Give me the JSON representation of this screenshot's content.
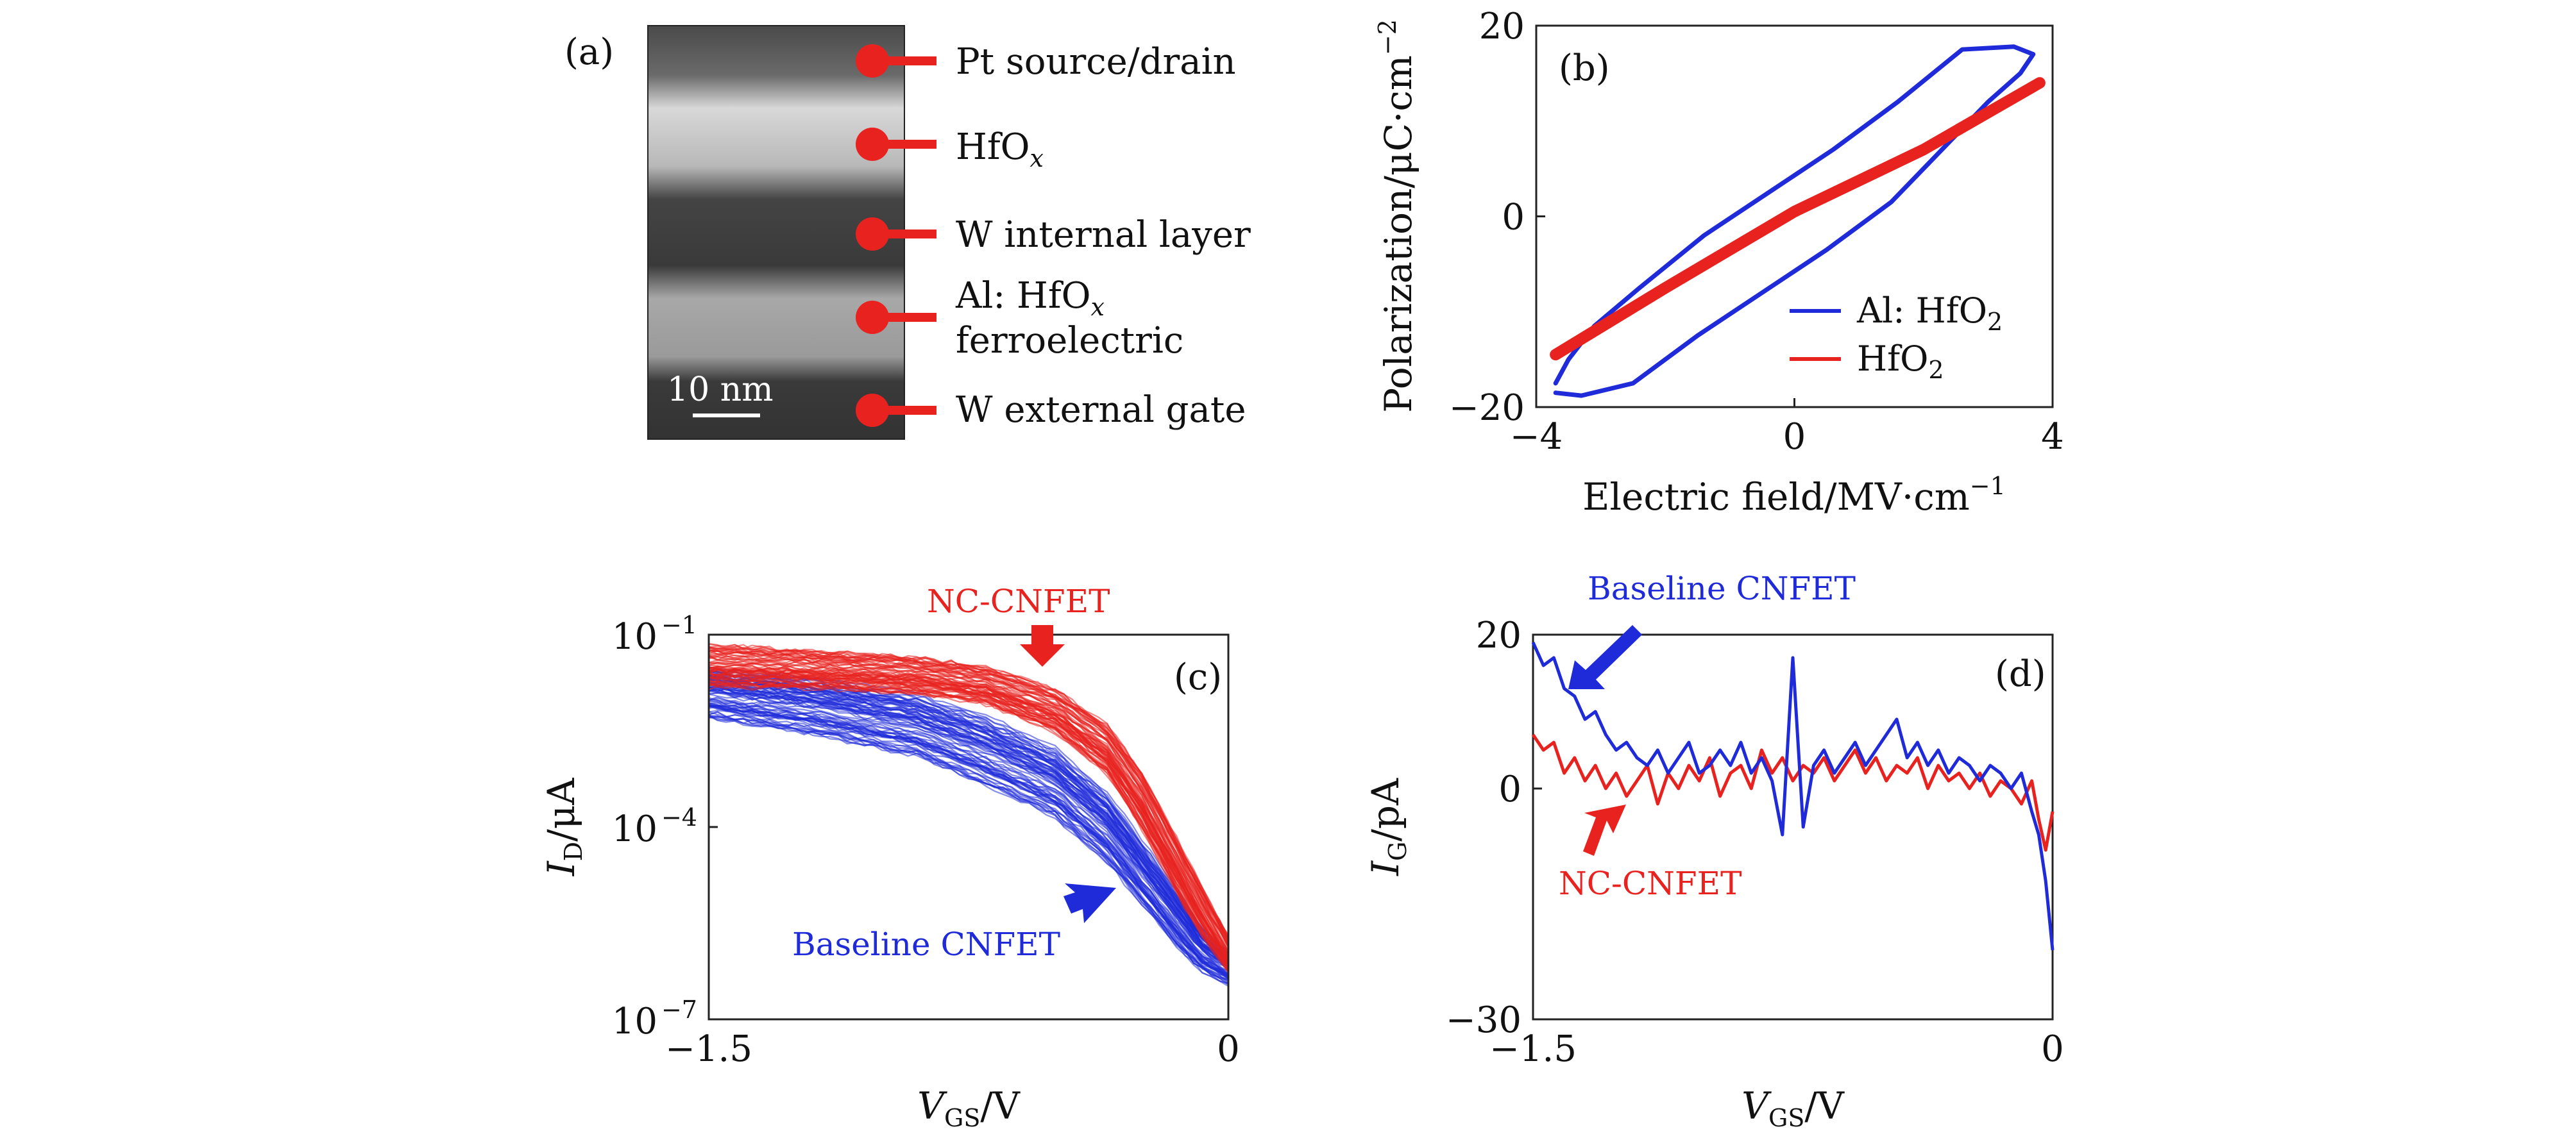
{
  "panels": {
    "a": {
      "label": "(a)",
      "scalebar": "10 nm",
      "layers": [
        {
          "lines": [
            "Pt source/drain"
          ]
        },
        {
          "lines": [
            "HfO",
            "x"
          ],
          "sub": true
        },
        {
          "lines": [
            "W internal layer"
          ]
        },
        {
          "lines": [
            "Al: HfO",
            "x"
          ],
          "sub": true,
          "line2": "ferroelectric"
        },
        {
          "lines": [
            "W external gate"
          ]
        }
      ]
    }
  },
  "chart_data": [
    {
      "id": "b",
      "type": "line",
      "panel_label": "(b)",
      "xlabel": "Electric field/MV·cm",
      "xlabel_sup": "−1",
      "ylabel": "Polarization/μC·cm",
      "ylabel_sup": "−2",
      "xlim": [
        -4,
        4
      ],
      "ylim": [
        -20,
        20
      ],
      "xticks": [
        -4,
        0,
        4
      ],
      "yticks": [
        -20,
        0,
        20
      ],
      "xtick_labels": [
        "−4",
        "0",
        "4"
      ],
      "ytick_labels": [
        "−20",
        "0",
        "20"
      ],
      "legend_position": "bottom-right",
      "series": [
        {
          "name": "Al: HfO",
          "name_sub": "2",
          "color": "#1f2bd8",
          "x": [
            -3.7,
            -3.3,
            -2.5,
            -1.5,
            -0.5,
            0.5,
            1.5,
            2.5,
            3.0,
            3.5,
            3.7,
            3.4,
            2.6,
            1.6,
            0.6,
            -0.4,
            -1.4,
            -2.4,
            -3.1,
            -3.5,
            -3.7
          ],
          "y": [
            -18.5,
            -18.8,
            -17.5,
            -12.5,
            -8.0,
            -3.5,
            1.5,
            8.5,
            12.0,
            15.0,
            17.0,
            17.8,
            17.5,
            12.0,
            7.0,
            2.5,
            -2.0,
            -7.5,
            -11.5,
            -15.0,
            -17.5
          ]
        },
        {
          "name": "HfO",
          "name_sub": "2",
          "color": "#e8231f",
          "x": [
            -3.7,
            -2.0,
            0.0,
            2.0,
            3.8
          ],
          "y": [
            -14.5,
            -7.5,
            0.5,
            7.0,
            14.0
          ]
        }
      ]
    },
    {
      "id": "c",
      "type": "line",
      "panel_label": "(c)",
      "xlabel": "V",
      "xlabel_sub": "GS",
      "xlabel_unit": "/V",
      "ylabel": "I",
      "ylabel_sub": "D",
      "ylabel_unit": "/μA",
      "xlim": [
        -1.5,
        0
      ],
      "ylog": true,
      "ylim_exp": [
        -7,
        -1
      ],
      "xticks": [
        -1.5,
        0
      ],
      "xtick_labels": [
        "−1.5",
        "0"
      ],
      "ytick_exps": [
        -1,
        -4,
        -7
      ],
      "ytick_labels": [
        "10",
        "10",
        "10"
      ],
      "ytick_sups": [
        "−1",
        "−4",
        "−7"
      ],
      "annotations": [
        {
          "text": "NC-CNFET",
          "color": "#e8231f"
        },
        {
          "text": "Baseline CNFET",
          "color": "#1f2bd8"
        }
      ],
      "families": [
        {
          "name": "NC-CNFET",
          "color": "#e8231f",
          "count": 70,
          "x": [
            -1.5,
            -1.2,
            -0.9,
            -0.7,
            -0.5,
            -0.35,
            -0.25,
            -0.15,
            -0.08,
            0
          ],
          "log_y_center": [
            -1.5,
            -1.55,
            -1.65,
            -1.8,
            -2.2,
            -2.8,
            -3.6,
            -4.6,
            -5.3,
            -6.0
          ],
          "log_y_spread": [
            0.35,
            0.3,
            0.3,
            0.3,
            0.35,
            0.4,
            0.45,
            0.45,
            0.4,
            0.3
          ]
        },
        {
          "name": "Baseline CNFET",
          "color": "#1f2bd8",
          "count": 80,
          "x": [
            -1.5,
            -1.2,
            -0.9,
            -0.7,
            -0.5,
            -0.35,
            -0.25,
            -0.15,
            -0.08,
            0
          ],
          "log_y_center": [
            -1.9,
            -2.1,
            -2.4,
            -2.8,
            -3.3,
            -4.0,
            -4.7,
            -5.4,
            -5.9,
            -6.2
          ],
          "log_y_spread": [
            0.4,
            0.45,
            0.5,
            0.55,
            0.55,
            0.55,
            0.5,
            0.45,
            0.35,
            0.25
          ]
        }
      ]
    },
    {
      "id": "d",
      "type": "line",
      "panel_label": "(d)",
      "xlabel": "V",
      "xlabel_sub": "GS",
      "xlabel_unit": "/V",
      "ylabel": "I",
      "ylabel_sub": "G",
      "ylabel_unit": "/pA",
      "xlim": [
        -1.5,
        0
      ],
      "ylim": [
        -30,
        20
      ],
      "xticks": [
        -1.5,
        0
      ],
      "xtick_labels": [
        "−1.5",
        "0"
      ],
      "yticks": [
        -30,
        0,
        20
      ],
      "ytick_labels": [
        "−30",
        "0",
        "20"
      ],
      "annotations": [
        {
          "text": "Baseline CNFET",
          "color": "#1f2bd8"
        },
        {
          "text": "NC-CNFET",
          "color": "#e8231f"
        }
      ],
      "series": [
        {
          "name": "Baseline CNFET",
          "color": "#1f2bd8",
          "x": [
            -1.5,
            -1.47,
            -1.44,
            -1.41,
            -1.38,
            -1.35,
            -1.32,
            -1.29,
            -1.26,
            -1.23,
            -1.2,
            -1.17,
            -1.14,
            -1.11,
            -1.08,
            -1.05,
            -1.02,
            -0.99,
            -0.96,
            -0.93,
            -0.9,
            -0.87,
            -0.84,
            -0.81,
            -0.78,
            -0.75,
            -0.72,
            -0.69,
            -0.66,
            -0.63,
            -0.6,
            -0.57,
            -0.54,
            -0.51,
            -0.48,
            -0.45,
            -0.42,
            -0.39,
            -0.36,
            -0.33,
            -0.3,
            -0.27,
            -0.24,
            -0.21,
            -0.18,
            -0.15,
            -0.12,
            -0.09,
            -0.06,
            -0.04,
            -0.02,
            0
          ],
          "y": [
            19,
            16,
            17,
            13,
            12,
            9,
            10,
            7,
            5,
            6,
            4,
            3,
            5,
            2,
            4,
            6,
            2,
            3,
            5,
            3,
            6,
            2,
            4,
            1,
            -6,
            17,
            -5,
            3,
            5,
            2,
            4,
            6,
            3,
            5,
            7,
            9,
            4,
            6,
            3,
            5,
            2,
            4,
            3,
            1,
            3,
            2,
            0,
            2,
            -3,
            -6,
            -12,
            -21
          ]
        },
        {
          "name": "NC-CNFET",
          "color": "#e8231f",
          "x": [
            -1.5,
            -1.47,
            -1.44,
            -1.41,
            -1.38,
            -1.35,
            -1.32,
            -1.29,
            -1.26,
            -1.23,
            -1.2,
            -1.17,
            -1.14,
            -1.11,
            -1.08,
            -1.05,
            -1.02,
            -0.99,
            -0.96,
            -0.93,
            -0.9,
            -0.87,
            -0.84,
            -0.81,
            -0.78,
            -0.75,
            -0.72,
            -0.69,
            -0.66,
            -0.63,
            -0.6,
            -0.57,
            -0.54,
            -0.51,
            -0.48,
            -0.45,
            -0.42,
            -0.39,
            -0.36,
            -0.33,
            -0.3,
            -0.27,
            -0.24,
            -0.21,
            -0.18,
            -0.15,
            -0.12,
            -0.09,
            -0.06,
            -0.04,
            -0.02,
            0
          ],
          "y": [
            7,
            5,
            6,
            2,
            4,
            1,
            3,
            0,
            2,
            -1,
            1,
            3,
            -2,
            2,
            0,
            3,
            1,
            4,
            -1,
            2,
            3,
            0,
            5,
            2,
            4,
            1,
            3,
            2,
            4,
            1,
            3,
            5,
            2,
            4,
            1,
            3,
            2,
            4,
            0,
            3,
            1,
            2,
            0,
            2,
            -1,
            1,
            0,
            -2,
            1,
            -4,
            -8,
            -3
          ]
        }
      ]
    }
  ]
}
